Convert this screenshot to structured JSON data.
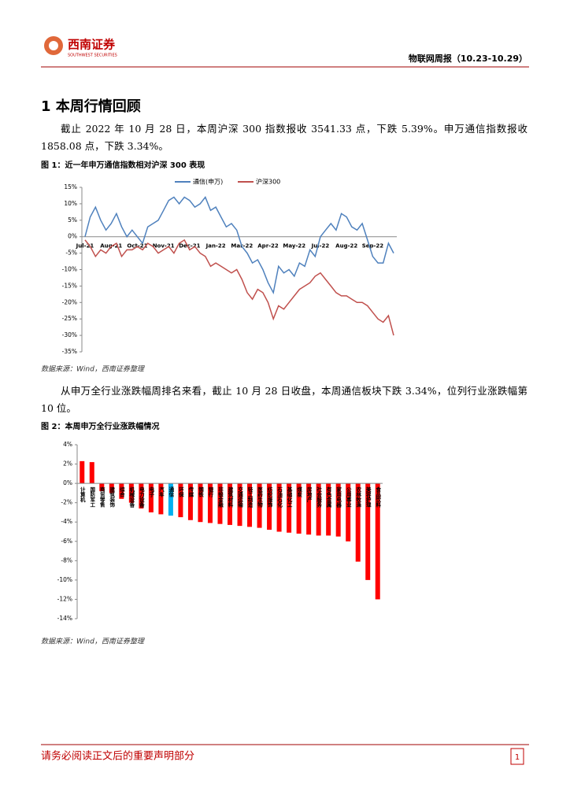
{
  "header": {
    "logo_cn": "西南证券",
    "logo_en": "SOUTHWEST SECURITIES",
    "report": "物联网周报（10.23-10.29）"
  },
  "section_title": "1 本周行情回顾",
  "paragraphs": [
    "截止 2022 年 10 月 28 日，本周沪深 300 指数报收 3541.33 点，下跌 5.39%。申万通信指数报收 1858.08 点，下跌 3.34%。",
    "从申万全行业涨跌幅周排名来看，截止 10 月 28 日收盘，本周通信板块下跌 3.34%，位列行业涨跌幅第 10 位。"
  ],
  "chart_data": [
    {
      "type": "line",
      "caption": "图 1：近一年申万通信指数相对沪深 300 表现",
      "source": "数据来源：Wind，西南证券整理",
      "categories": [
        "Jul-21",
        null,
        null,
        null,
        null,
        "Aug-21",
        null,
        null,
        null,
        null,
        "Oct-21",
        null,
        null,
        null,
        null,
        "Nov-21",
        null,
        null,
        null,
        null,
        "Dec-21",
        null,
        null,
        null,
        null,
        "Jan-22",
        null,
        null,
        null,
        null,
        "Mar-22",
        null,
        null,
        null,
        null,
        "Apr-22",
        null,
        null,
        null,
        null,
        "May-22",
        null,
        null,
        null,
        null,
        "Jul-22",
        null,
        null,
        null,
        null,
        "Aug-22",
        null,
        null,
        null,
        null,
        "Sep-22",
        null,
        null,
        null,
        null
      ],
      "series": [
        {
          "name": "通信(申万)",
          "color": "#4f81bd",
          "values": [
            0,
            6,
            9,
            5,
            2,
            4,
            7,
            3,
            0,
            2,
            0,
            -2,
            3,
            4,
            5,
            8,
            11,
            12,
            10,
            12,
            11,
            9,
            10,
            12,
            8,
            9,
            6,
            3,
            4,
            2,
            -3,
            -5,
            -8,
            -7,
            -10,
            -14,
            -17,
            -9,
            -11,
            -10,
            -12,
            -8,
            -9,
            -4,
            -6,
            0,
            2,
            4,
            2,
            7,
            6,
            3,
            2,
            4,
            -1,
            -6,
            -8,
            -8,
            -2,
            -5
          ]
        },
        {
          "name": "沪深300",
          "color": "#c0504d",
          "values": [
            -1,
            -3,
            -6,
            -4,
            -5,
            -3,
            -2,
            -6,
            -4,
            -4,
            -3,
            -4,
            -2,
            -3,
            -5,
            -4,
            -3,
            -5,
            -2,
            -1,
            -4,
            -3,
            -5,
            -6,
            -9,
            -8,
            -9,
            -10,
            -11,
            -10,
            -13,
            -17,
            -19,
            -16,
            -17,
            -20,
            -25,
            -21,
            -22,
            -20,
            -18,
            -16,
            -15,
            -14,
            -12,
            -11,
            -13,
            -15,
            -17,
            -18,
            -18,
            -19,
            -20,
            -20,
            -21,
            -23,
            -25,
            -26,
            -24,
            -30
          ]
        }
      ],
      "ylim": [
        -35,
        15
      ],
      "yticks": [
        {
          "value": -35,
          "label": "-35%"
        },
        {
          "value": -30,
          "label": "-30%"
        },
        {
          "value": -25,
          "label": "-25%"
        },
        {
          "value": -20,
          "label": "-20%"
        },
        {
          "value": -15,
          "label": "-15%"
        },
        {
          "value": -10,
          "label": "-10%"
        },
        {
          "value": -5,
          "label": "-5%"
        },
        {
          "value": 0,
          "label": "0%"
        },
        {
          "value": 5,
          "label": "5%"
        },
        {
          "value": 10,
          "label": "10%"
        },
        {
          "value": 15,
          "label": "15%"
        }
      ],
      "legend": "top"
    },
    {
      "type": "bar",
      "caption": "图 2：本周申万全行业涨跌幅情况",
      "source": "数据来源：Wind，西南证券整理",
      "categories": [
        "计算机",
        "国防军工",
        "商贸零售",
        "建筑装饰",
        "综合",
        "机械设备",
        "电力设备",
        "电子",
        "汽车",
        "通信",
        "环保",
        "传媒",
        "钢铁",
        "银行",
        "非银金融",
        "建筑材料",
        "交通运输",
        "轻工制造",
        "医药生物",
        "纺织服饰",
        "石油石化",
        "基础化工",
        "煤炭",
        "房地产",
        "社会服务",
        "有色金属",
        "家用电器",
        "公用事业",
        "农林牧渔",
        "美容护理",
        "食品饮料"
      ],
      "values": [
        2.3,
        2.2,
        -0.8,
        -1.0,
        -1.6,
        -2.0,
        -2.6,
        -3.0,
        -3.2,
        -3.34,
        -3.5,
        -3.8,
        -4.0,
        -4.1,
        -4.2,
        -4.3,
        -4.4,
        -4.5,
        -4.6,
        -4.8,
        -5.0,
        -5.1,
        -5.2,
        -5.3,
        -5.4,
        -5.4,
        -5.5,
        -6.0,
        -8.1,
        -10.0,
        -12.0
      ],
      "colors": [
        "#ff0000",
        "#ff0000",
        "#ff0000",
        "#ff0000",
        "#ff0000",
        "#ff0000",
        "#ff0000",
        "#ff0000",
        "#ff0000",
        "#00b0f0",
        "#ff0000",
        "#ff0000",
        "#ff0000",
        "#ff0000",
        "#ff0000",
        "#ff0000",
        "#ff0000",
        "#ff0000",
        "#ff0000",
        "#ff0000",
        "#ff0000",
        "#ff0000",
        "#ff0000",
        "#ff0000",
        "#ff0000",
        "#ff0000",
        "#ff0000",
        "#ff0000",
        "#ff0000",
        "#ff0000",
        "#ff0000"
      ],
      "ylim": [
        -14,
        4
      ],
      "yticks": [
        {
          "value": -14,
          "label": "-14%"
        },
        {
          "value": -12,
          "label": "-12%"
        },
        {
          "value": -10,
          "label": "-10%"
        },
        {
          "value": -8,
          "label": "-8%"
        },
        {
          "value": -6,
          "label": "-6%"
        },
        {
          "value": -4,
          "label": "-4%"
        },
        {
          "value": -2,
          "label": "-2%"
        },
        {
          "value": 0,
          "label": "0%"
        },
        {
          "value": 2,
          "label": "2%"
        },
        {
          "value": 4,
          "label": "4%"
        }
      ]
    }
  ],
  "footer": {
    "disclaimer": "请务必阅读正文后的重要声明部分",
    "page": "1"
  }
}
